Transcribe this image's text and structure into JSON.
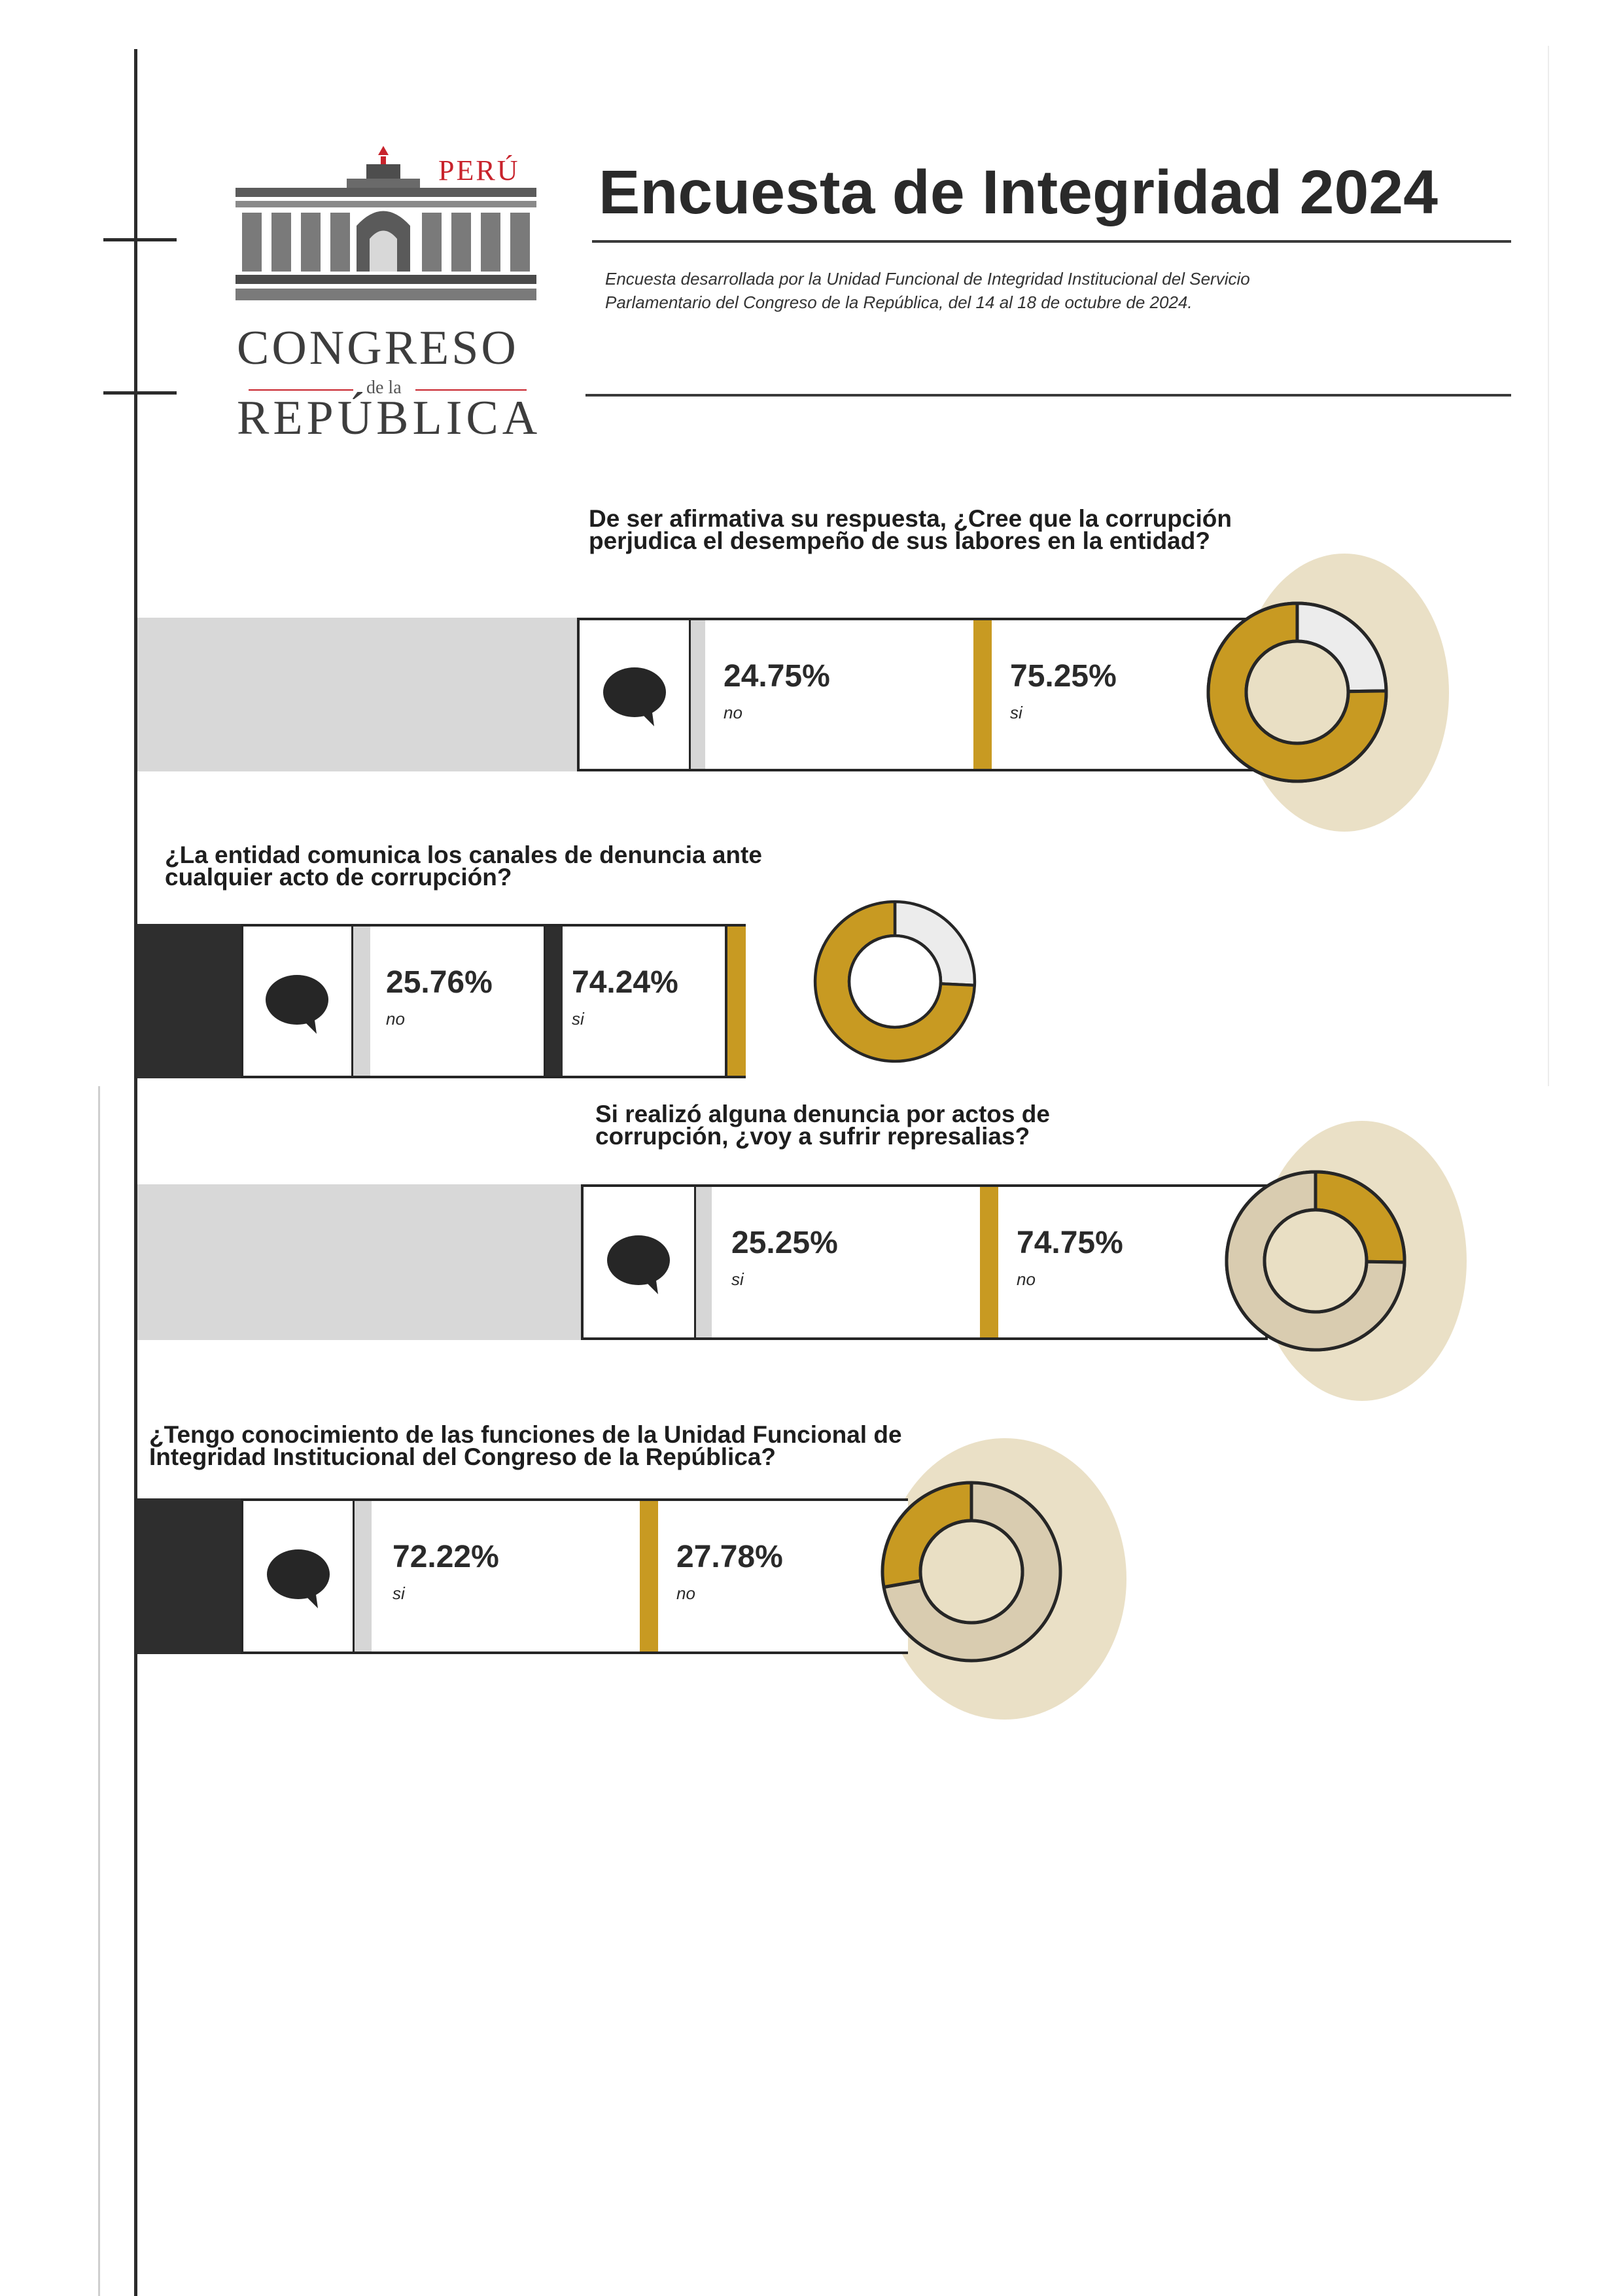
{
  "header": {
    "country": "PERÚ",
    "institution_line1": "CONGRESO",
    "institution_connector": "de la",
    "institution_line2": "REPÚBLICA",
    "title": "Encuesta de Integridad 2024",
    "subtitle": "Encuesta desarrollada por la Unidad Funcional de Integridad Institucional del Servicio Parlamentario del Congreso de la República, del 14 al 18 de octubre de 2024."
  },
  "colors": {
    "gold": "#c89a22",
    "light_gray": "#d9d9d9",
    "beige": "#e9dfc4",
    "tan": "#d9ccb0",
    "dark": "#2e2e2e"
  },
  "icons": {
    "response": "speech-bubble-icon",
    "logo": "congress-building-icon"
  },
  "questions": [
    {
      "question": "De ser afirmativa su respuesta, ¿Cree que la corrupción perjudica el desempeño de sus labores en la entidad?",
      "a_value": "24.75%",
      "a_label": "no",
      "b_value": "75.25%",
      "b_label": "si"
    },
    {
      "question": "¿La entidad comunica los canales de denuncia ante cualquier acto de corrupción?",
      "a_value": "25.76%",
      "a_label": "no",
      "b_value": "74.24%",
      "b_label": "si"
    },
    {
      "question": "Si realizó alguna denuncia por actos de corrupción, ¿voy a sufrir represalias?",
      "a_value": "25.25%",
      "a_label": "si",
      "b_value": "74.75%",
      "b_label": "no"
    },
    {
      "question": "¿Tengo conocimiento de las funciones de la Unidad Funcional de Integridad Institucional del Congreso de la República?",
      "a_value": "72.22%",
      "a_label": "si",
      "b_value": "27.78%",
      "b_label": "no"
    }
  ],
  "chart_data": [
    {
      "type": "pie",
      "categories": [
        "no",
        "si"
      ],
      "values": [
        24.75,
        75.25
      ]
    },
    {
      "type": "pie",
      "categories": [
        "no",
        "si"
      ],
      "values": [
        25.76,
        74.24
      ]
    },
    {
      "type": "pie",
      "categories": [
        "si",
        "no"
      ],
      "values": [
        25.25,
        74.75
      ]
    },
    {
      "type": "pie",
      "categories": [
        "si",
        "no"
      ],
      "values": [
        72.22,
        27.78
      ]
    }
  ]
}
